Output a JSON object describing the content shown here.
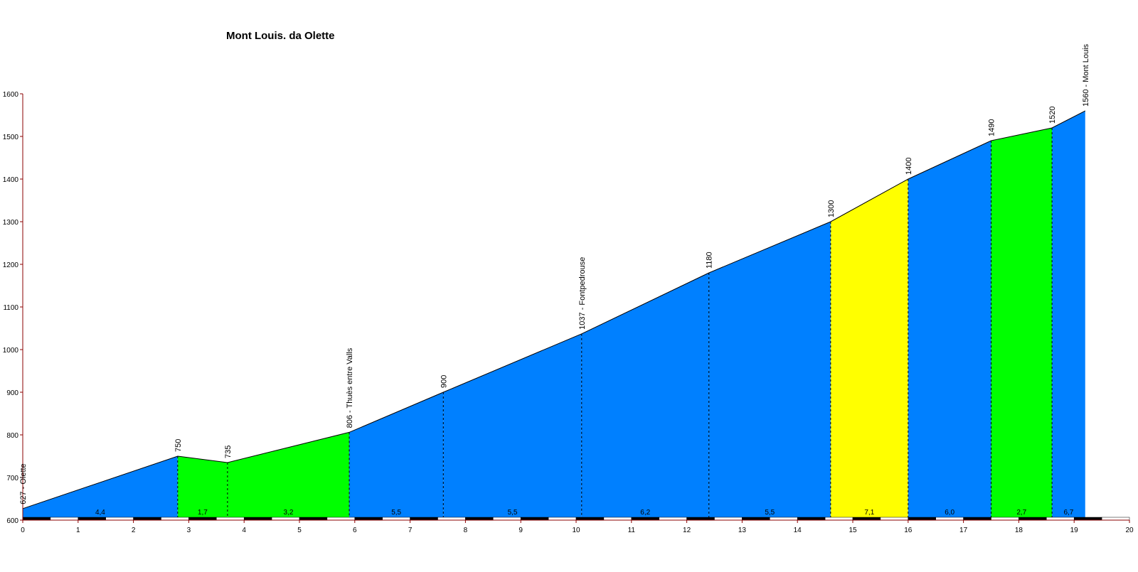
{
  "chart_data": {
    "type": "area",
    "title": "Mont Louis. da Olette",
    "xlabel": "",
    "ylabel": "",
    "xlim": [
      0,
      20
    ],
    "ylim": [
      600,
      1600
    ],
    "x_ticks": [
      "0",
      "1",
      "2",
      "3",
      "4",
      "5",
      "6",
      "7",
      "8",
      "9",
      "10",
      "11",
      "12",
      "13",
      "14",
      "15",
      "16",
      "17",
      "18",
      "19",
      "20"
    ],
    "y_ticks": [
      "600",
      "700",
      "800",
      "900",
      "1000",
      "1100",
      "1200",
      "1300",
      "1400",
      "1500",
      "1600"
    ],
    "grid": false,
    "points": [
      {
        "x": 0.0,
        "y": 627,
        "label": "627 - Olette"
      },
      {
        "x": 2.8,
        "y": 750,
        "label": "750"
      },
      {
        "x": 3.7,
        "y": 735,
        "label": "735"
      },
      {
        "x": 5.9,
        "y": 806,
        "label": "806 - Thuès entre Valls"
      },
      {
        "x": 7.6,
        "y": 900,
        "label": "900"
      },
      {
        "x": 10.1,
        "y": 1037,
        "label": "1037 - Fontpedrouse"
      },
      {
        "x": 12.4,
        "y": 1180,
        "label": "1180"
      },
      {
        "x": 14.6,
        "y": 1300,
        "label": "1300"
      },
      {
        "x": 16.0,
        "y": 1400,
        "label": "1400"
      },
      {
        "x": 17.5,
        "y": 1490,
        "label": "1490"
      },
      {
        "x": 18.6,
        "y": 1520,
        "label": "1520"
      },
      {
        "x": 19.2,
        "y": 1560,
        "label": "1560 - Mont Louis"
      }
    ],
    "segments": [
      {
        "gradient": "4,4",
        "color": "#0080FF"
      },
      {
        "gradient": "1,7",
        "color": "#00FF00"
      },
      {
        "gradient": "3,2",
        "color": "#00FF00"
      },
      {
        "gradient": "5,5",
        "color": "#0080FF"
      },
      {
        "gradient": "5,5",
        "color": "#0080FF"
      },
      {
        "gradient": "6,2",
        "color": "#0080FF"
      },
      {
        "gradient": "5,5",
        "color": "#0080FF"
      },
      {
        "gradient": "7,1",
        "color": "#FFFF00"
      },
      {
        "gradient": "6,0",
        "color": "#0080FF"
      },
      {
        "gradient": "2,7",
        "color": "#00FF00"
      },
      {
        "gradient": "6,7",
        "color": "#0080FF"
      }
    ],
    "colors": {
      "axis": "#8B0000",
      "outline": "#000000",
      "scale_dark": "#000000",
      "scale_light": "#FFFFFF"
    }
  }
}
